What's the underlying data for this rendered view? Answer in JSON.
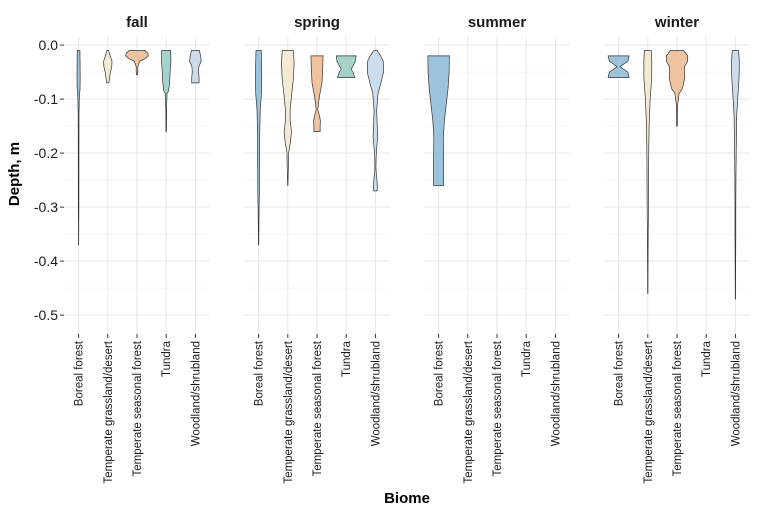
{
  "chart_data": {
    "type": "violin",
    "xlabel": "Biome",
    "ylabel": "Depth, m",
    "ylim": [
      -0.535,
      0.015
    ],
    "yticks": [
      0.0,
      -0.1,
      -0.2,
      -0.3,
      -0.4,
      -0.5
    ],
    "ytick_labels": [
      "0.0",
      "-0.1",
      "-0.2",
      "-0.3",
      "-0.4",
      "-0.5"
    ],
    "grid": true,
    "categories": [
      "Boreal forest",
      "Temperate grassland/desert",
      "Temperate seasonal forest",
      "Tundra",
      "Woodland/shrubland"
    ],
    "colors": {
      "Boreal forest": "#9dc3dc",
      "Temperate grassland/desert": "#f3ead3",
      "Temperate seasonal forest": "#eec3a0",
      "Tundra": "#a6d3c9",
      "Woodland/shrubland": "#cddcea"
    },
    "facets": [
      {
        "title": "fall",
        "violins": [
          {
            "category": "Boreal forest",
            "top": -0.01,
            "bottom": -0.37,
            "profile": [
              [
                -0.01,
                0.1
              ],
              [
                -0.03,
                0.11
              ],
              [
                -0.06,
                0.12
              ],
              [
                -0.08,
                0.11
              ],
              [
                -0.09,
                0.08
              ],
              [
                -0.1,
                0.05
              ],
              [
                -0.13,
                0.03
              ],
              [
                -0.2,
                0.025
              ],
              [
                -0.3,
                0.02
              ],
              [
                -0.33,
                0.012
              ],
              [
                -0.37,
                0.005
              ]
            ]
          },
          {
            "category": "Temperate grassland/desert",
            "top": -0.01,
            "bottom": -0.07,
            "profile": [
              [
                -0.01,
                0.06
              ],
              [
                -0.02,
                0.18
              ],
              [
                -0.03,
                0.32
              ],
              [
                -0.04,
                0.3
              ],
              [
                -0.05,
                0.2
              ],
              [
                -0.06,
                0.14
              ],
              [
                -0.07,
                0.08
              ]
            ]
          },
          {
            "category": "Temperate seasonal forest",
            "top": -0.01,
            "bottom": -0.055,
            "profile": [
              [
                -0.01,
                0.6
              ],
              [
                -0.015,
                0.82
              ],
              [
                -0.02,
                0.86
              ],
              [
                -0.025,
                0.62
              ],
              [
                -0.03,
                0.2
              ],
              [
                -0.04,
                0.06
              ],
              [
                -0.05,
                0.06
              ],
              [
                -0.055,
                0.04
              ]
            ]
          },
          {
            "category": "Tundra",
            "top": -0.01,
            "bottom": -0.16,
            "profile": [
              [
                -0.01,
                0.34
              ],
              [
                -0.03,
                0.36
              ],
              [
                -0.05,
                0.3
              ],
              [
                -0.07,
                0.26
              ],
              [
                -0.085,
                0.18
              ],
              [
                -0.09,
                0.06
              ],
              [
                -0.12,
                0.03
              ],
              [
                -0.16,
                0.02
              ]
            ]
          },
          {
            "category": "Woodland/shrubland",
            "top": -0.01,
            "bottom": -0.07,
            "profile": [
              [
                -0.01,
                0.3
              ],
              [
                -0.02,
                0.4
              ],
              [
                -0.03,
                0.44
              ],
              [
                -0.04,
                0.26
              ],
              [
                -0.05,
                0.24
              ],
              [
                -0.06,
                0.28
              ],
              [
                -0.07,
                0.28
              ]
            ]
          }
        ]
      },
      {
        "title": "spring",
        "violins": [
          {
            "category": "Boreal forest",
            "top": -0.01,
            "bottom": -0.37,
            "profile": [
              [
                -0.01,
                0.2
              ],
              [
                -0.03,
                0.22
              ],
              [
                -0.06,
                0.24
              ],
              [
                -0.09,
                0.22
              ],
              [
                -0.12,
                0.12
              ],
              [
                -0.17,
                0.08
              ],
              [
                -0.22,
                0.07
              ],
              [
                -0.27,
                0.06
              ],
              [
                -0.3,
                0.04
              ],
              [
                -0.34,
                0.02
              ],
              [
                -0.37,
                0.01
              ]
            ]
          },
          {
            "category": "Temperate grassland/desert",
            "top": -0.01,
            "bottom": -0.26,
            "profile": [
              [
                -0.01,
                0.42
              ],
              [
                -0.03,
                0.48
              ],
              [
                -0.06,
                0.44
              ],
              [
                -0.09,
                0.3
              ],
              [
                -0.12,
                0.18
              ],
              [
                -0.14,
                0.18
              ],
              [
                -0.16,
                0.28
              ],
              [
                -0.18,
                0.2
              ],
              [
                -0.2,
                0.06
              ],
              [
                -0.22,
                0.05
              ],
              [
                -0.24,
                0.03
              ],
              [
                -0.26,
                0.01
              ]
            ]
          },
          {
            "category": "Temperate seasonal forest",
            "top": -0.02,
            "bottom": -0.16,
            "profile": [
              [
                -0.02,
                0.46
              ],
              [
                -0.04,
                0.44
              ],
              [
                -0.07,
                0.38
              ],
              [
                -0.09,
                0.22
              ],
              [
                -0.11,
                0.1
              ],
              [
                -0.12,
                0.06
              ],
              [
                -0.13,
                0.18
              ],
              [
                -0.14,
                0.26
              ],
              [
                -0.15,
                0.24
              ],
              [
                -0.16,
                0.24
              ]
            ]
          },
          {
            "category": "Tundra",
            "top": -0.02,
            "bottom": -0.06,
            "profile": [
              [
                -0.02,
                0.76
              ],
              [
                -0.03,
                0.7
              ],
              [
                -0.04,
                0.48
              ],
              [
                -0.045,
                0.38
              ],
              [
                -0.05,
                0.52
              ],
              [
                -0.06,
                0.66
              ]
            ]
          },
          {
            "category": "Woodland/shrubland",
            "top": -0.01,
            "bottom": -0.27,
            "profile": [
              [
                -0.01,
                0.12
              ],
              [
                -0.02,
                0.4
              ],
              [
                -0.03,
                0.6
              ],
              [
                -0.05,
                0.62
              ],
              [
                -0.07,
                0.42
              ],
              [
                -0.09,
                0.2
              ],
              [
                -0.12,
                0.1
              ],
              [
                -0.15,
                0.14
              ],
              [
                -0.17,
                0.18
              ],
              [
                -0.19,
                0.1
              ],
              [
                -0.21,
                0.05
              ],
              [
                -0.23,
                0.04
              ],
              [
                -0.25,
                0.12
              ],
              [
                -0.26,
                0.14
              ],
              [
                -0.27,
                0.14
              ]
            ]
          }
        ]
      },
      {
        "title": "summer",
        "violins": [
          {
            "category": "Boreal forest",
            "top": -0.02,
            "bottom": -0.26,
            "profile": [
              [
                -0.02,
                0.82
              ],
              [
                -0.05,
                0.8
              ],
              [
                -0.08,
                0.72
              ],
              [
                -0.11,
                0.58
              ],
              [
                -0.14,
                0.44
              ],
              [
                -0.17,
                0.36
              ],
              [
                -0.2,
                0.38
              ],
              [
                -0.23,
                0.38
              ],
              [
                -0.26,
                0.38
              ]
            ]
          }
        ]
      },
      {
        "title": "winter",
        "violins": [
          {
            "category": "Boreal forest",
            "top": -0.02,
            "bottom": -0.06,
            "profile": [
              [
                -0.02,
                0.8
              ],
              [
                -0.03,
                0.7
              ],
              [
                -0.035,
                0.4
              ],
              [
                -0.04,
                0.12
              ],
              [
                -0.045,
                0.4
              ],
              [
                -0.05,
                0.7
              ],
              [
                -0.06,
                0.8
              ]
            ]
          },
          {
            "category": "Temperate grassland/desert",
            "top": -0.01,
            "bottom": -0.46,
            "profile": [
              [
                -0.01,
                0.26
              ],
              [
                -0.03,
                0.3
              ],
              [
                -0.06,
                0.3
              ],
              [
                -0.1,
                0.18
              ],
              [
                -0.15,
                0.1
              ],
              [
                -0.2,
                0.07
              ],
              [
                -0.25,
                0.06
              ],
              [
                -0.3,
                0.05
              ],
              [
                -0.35,
                0.03
              ],
              [
                -0.4,
                0.02
              ],
              [
                -0.46,
                0.01
              ]
            ]
          },
          {
            "category": "Temperate seasonal forest",
            "top": -0.01,
            "bottom": -0.15,
            "profile": [
              [
                -0.01,
                0.5
              ],
              [
                -0.02,
                0.82
              ],
              [
                -0.03,
                0.8
              ],
              [
                -0.04,
                0.58
              ],
              [
                -0.05,
                0.56
              ],
              [
                -0.06,
                0.6
              ],
              [
                -0.08,
                0.42
              ],
              [
                -0.09,
                0.16
              ],
              [
                -0.11,
                0.05
              ],
              [
                -0.15,
                0.03
              ]
            ]
          },
          {
            "category": "Woodland/shrubland",
            "top": -0.01,
            "bottom": -0.47,
            "profile": [
              [
                -0.01,
                0.24
              ],
              [
                -0.03,
                0.3
              ],
              [
                -0.06,
                0.28
              ],
              [
                -0.09,
                0.2
              ],
              [
                -0.13,
                0.1
              ],
              [
                -0.2,
                0.06
              ],
              [
                -0.25,
                0.04
              ],
              [
                -0.3,
                0.03
              ],
              [
                -0.35,
                0.03
              ],
              [
                -0.4,
                0.02
              ],
              [
                -0.47,
                0.01
              ]
            ]
          }
        ]
      }
    ]
  }
}
